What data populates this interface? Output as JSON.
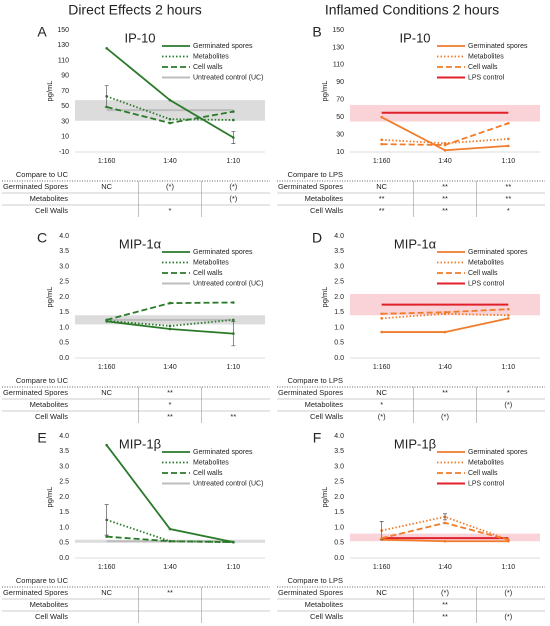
{
  "headers": [
    "Direct Effects 2 hours",
    "Inflamed Conditions 2 hours"
  ],
  "chart_data": [
    {
      "type": "line",
      "label": "A",
      "title": "IP-10",
      "y_label": "pg/mL",
      "categories": [
        "1:160",
        "1:40",
        "1:10"
      ],
      "ylim": [
        -10,
        150
      ],
      "yticks": [
        -10,
        10,
        30,
        50,
        70,
        90,
        110,
        130,
        150
      ],
      "grid": false,
      "series": [
        {
          "name": "Germinated spores",
          "color": "#2a7a2a",
          "style": "solid",
          "values": [
            126,
            58,
            9
          ],
          "errors": [
            null,
            null,
            8
          ]
        },
        {
          "name": "Metabolites",
          "color": "#2a7a2a",
          "style": "dot",
          "values": [
            63,
            33,
            32
          ],
          "errors": [
            14,
            null,
            null
          ]
        },
        {
          "name": "Cell walls",
          "color": "#2a7a2a",
          "style": "dash",
          "values": [
            49,
            28,
            43
          ]
        }
      ],
      "control": {
        "name": "Untreated control (UC)",
        "color": "#bdbdbd",
        "band_color": "#dcdcdc",
        "value": 45,
        "band": [
          31,
          58
        ]
      },
      "table": {
        "header": "Compare to UC",
        "rows": [
          {
            "label": "Germinated Spores",
            "cells": [
              "NC",
              "(*)",
              "(*)"
            ]
          },
          {
            "label": "Metabolites",
            "cells": [
              null,
              null,
              "(*)"
            ]
          },
          {
            "label": "Cell Walls",
            "cells": [
              null,
              "*",
              null
            ]
          }
        ]
      }
    },
    {
      "type": "line",
      "label": "B",
      "title": "IP-10",
      "y_label": "pg/mL",
      "categories": [
        "1:160",
        "1:40",
        "1:10"
      ],
      "ylim": [
        10,
        150
      ],
      "yticks": [
        10,
        30,
        50,
        70,
        90,
        110,
        130,
        150
      ],
      "grid": false,
      "series": [
        {
          "name": "Germinated spores",
          "color": "#f07c2a",
          "style": "solid",
          "values": [
            50,
            12,
            17
          ]
        },
        {
          "name": "Metabolites",
          "color": "#f07c2a",
          "style": "dot",
          "values": [
            24,
            20,
            25
          ]
        },
        {
          "name": "Cell walls",
          "color": "#f07c2a",
          "style": "dash",
          "values": [
            19,
            18,
            43
          ]
        }
      ],
      "control": {
        "name": "LPS control",
        "color": "#e0202a",
        "band_color": "#fad3d8",
        "value": 55,
        "band": [
          45,
          64
        ]
      },
      "table": {
        "header": "Compare to LPS",
        "rows": [
          {
            "label": "Germinated Spores",
            "cells": [
              "NC",
              "**",
              "**"
            ]
          },
          {
            "label": "Metabolites",
            "cells": [
              "**",
              "**",
              "**"
            ]
          },
          {
            "label": "Cell Walls",
            "cells": [
              "**",
              "**",
              "*"
            ]
          }
        ]
      }
    },
    {
      "type": "line",
      "label": "C",
      "title": "MIP-1α",
      "y_label": "pg/mL",
      "categories": [
        "1:160",
        "1:40",
        "1:10"
      ],
      "ylim": [
        0,
        4
      ],
      "yticks": [
        {
          "value": 0,
          "label": "0.0"
        },
        0.5,
        {
          "value": 1,
          "label": "1.0"
        },
        1.5,
        {
          "value": 2,
          "label": "2.0"
        },
        2.5,
        {
          "value": 3,
          "label": "3.0"
        },
        3.5,
        {
          "value": 4,
          "label": "4.0"
        }
      ],
      "grid": false,
      "series": [
        {
          "name": "Germinated spores",
          "color": "#2a7a2a",
          "style": "solid",
          "values": [
            1.2,
            0.95,
            0.8
          ],
          "errors": [
            null,
            null,
            0.4
          ]
        },
        {
          "name": "Metabolites",
          "color": "#2a7a2a",
          "style": "dot",
          "values": [
            1.22,
            1.05,
            1.25
          ]
        },
        {
          "name": "Cell walls",
          "color": "#2a7a2a",
          "style": "dash",
          "values": [
            1.25,
            1.8,
            1.82
          ]
        }
      ],
      "control": {
        "name": "Untreated control (UC)",
        "color": "#bdbdbd",
        "band_color": "#dcdcdc",
        "value": 1.25,
        "band": [
          1.1,
          1.4
        ]
      },
      "table": {
        "header": "Compare to UC",
        "rows": [
          {
            "label": "Germinated Spores",
            "cells": [
              "NC",
              "**",
              null
            ]
          },
          {
            "label": "Metabolites",
            "cells": [
              null,
              "*",
              null
            ]
          },
          {
            "label": "Cell Walls",
            "cells": [
              null,
              "**",
              "**"
            ]
          }
        ]
      }
    },
    {
      "type": "line",
      "label": "D",
      "title": "MIP-1α",
      "y_label": "pg/mL",
      "categories": [
        "1:160",
        "1:40",
        "1:10"
      ],
      "ylim": [
        0,
        4
      ],
      "yticks": [
        {
          "value": 0,
          "label": "0.0"
        },
        0.5,
        {
          "value": 1,
          "label": "1.0"
        },
        1.5,
        {
          "value": 2,
          "label": "2.0"
        },
        2.5,
        {
          "value": 3,
          "label": "3.0"
        },
        3.5,
        {
          "value": 4,
          "label": "4.0"
        }
      ],
      "grid": false,
      "series": [
        {
          "name": "Germinated spores",
          "color": "#f07c2a",
          "style": "solid",
          "values": [
            0.85,
            0.85,
            1.3
          ]
        },
        {
          "name": "Metabolites",
          "color": "#f07c2a",
          "style": "dot",
          "values": [
            1.3,
            1.45,
            1.4
          ]
        },
        {
          "name": "Cell walls",
          "color": "#f07c2a",
          "style": "dash",
          "values": [
            1.45,
            1.5,
            1.6
          ]
        }
      ],
      "control": {
        "name": "LPS control",
        "color": "#e0202a",
        "band_color": "#fad3d8",
        "value": 1.75,
        "band": [
          1.4,
          2.1
        ]
      },
      "table": {
        "header": "Compare to LPS",
        "rows": [
          {
            "label": "Germinated Spores",
            "cells": [
              "NC",
              "**",
              "*"
            ]
          },
          {
            "label": "Metabolites",
            "cells": [
              "*",
              null,
              "(*)"
            ]
          },
          {
            "label": "Cell Walls",
            "cells": [
              "(*)",
              "(*)",
              null
            ]
          }
        ]
      }
    },
    {
      "type": "line",
      "label": "E",
      "title": "MIP-1β",
      "y_label": "pg/mL",
      "categories": [
        "1:160",
        "1:40",
        "1:10"
      ],
      "ylim": [
        0,
        4
      ],
      "yticks": [
        {
          "value": 0,
          "label": "0.0"
        },
        0.5,
        {
          "value": 1,
          "label": "1.0"
        },
        1.5,
        {
          "value": 2,
          "label": "2.0"
        },
        2.5,
        {
          "value": 3,
          "label": "3.0"
        },
        3.5,
        {
          "value": 4,
          "label": "4.0"
        }
      ],
      "grid": false,
      "series": [
        {
          "name": "Germinated spores",
          "color": "#2a7a2a",
          "style": "solid",
          "values": [
            3.7,
            0.95,
            0.52
          ]
        },
        {
          "name": "Metabolites",
          "color": "#2a7a2a",
          "style": "dot",
          "values": [
            1.25,
            0.55,
            0.52
          ],
          "errors": [
            0.5,
            null,
            null
          ]
        },
        {
          "name": "Cell walls",
          "color": "#2a7a2a",
          "style": "dash",
          "values": [
            0.7,
            0.55,
            0.52
          ]
        }
      ],
      "control": {
        "name": "Untreated control (UC)",
        "color": "#bdbdbd",
        "band_color": "#dcdcdc",
        "value": 0.55,
        "band": [
          0.5,
          0.6
        ]
      },
      "table": {
        "header": "Compare to UC",
        "rows": [
          {
            "label": "Germinated Spores",
            "cells": [
              "NC",
              "**",
              null
            ]
          },
          {
            "label": "Metabolites",
            "cells": [
              null,
              null,
              null
            ]
          },
          {
            "label": "Cell Walls",
            "cells": [
              null,
              null,
              null
            ]
          }
        ]
      }
    },
    {
      "type": "line",
      "label": "F",
      "title": "MIP-1β",
      "y_label": "pg/mL",
      "categories": [
        "1:160",
        "1:40",
        "1:10"
      ],
      "ylim": [
        0,
        4
      ],
      "yticks": [
        {
          "value": 0,
          "label": "0.0"
        },
        0.5,
        {
          "value": 1,
          "label": "1.0"
        },
        1.5,
        {
          "value": 2,
          "label": "2.0"
        },
        2.5,
        {
          "value": 3,
          "label": "3.0"
        },
        3.5,
        {
          "value": 4,
          "label": "4.0"
        }
      ],
      "grid": false,
      "series": [
        {
          "name": "Germinated spores",
          "color": "#f07c2a",
          "style": "solid",
          "values": [
            0.6,
            0.55,
            0.55
          ]
        },
        {
          "name": "Metabolites",
          "color": "#f07c2a",
          "style": "dot",
          "values": [
            0.9,
            1.35,
            0.6
          ],
          "errors": [
            0.3,
            0.1,
            null
          ]
        },
        {
          "name": "Cell walls",
          "color": "#f07c2a",
          "style": "dash",
          "values": [
            0.65,
            1.15,
            0.6
          ]
        }
      ],
      "control": {
        "name": "LPS control",
        "color": "#e0202a",
        "band_color": "#fad3d8",
        "value": 0.65,
        "band": [
          0.55,
          0.8
        ]
      },
      "table": {
        "header": "Compare to LPS",
        "rows": [
          {
            "label": "Germinated Spores",
            "cells": [
              "NC",
              "(*)",
              "(*)"
            ]
          },
          {
            "label": "Metabolites",
            "cells": [
              null,
              "**",
              null
            ]
          },
          {
            "label": "Cell Walls",
            "cells": [
              null,
              "**",
              "(*)"
            ]
          }
        ]
      }
    }
  ]
}
